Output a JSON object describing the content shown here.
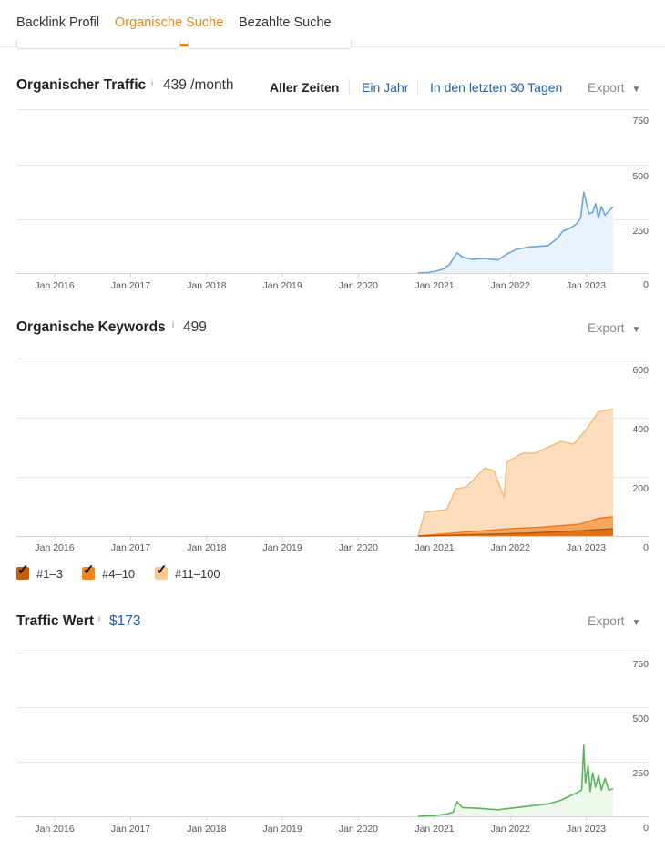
{
  "tabs": [
    {
      "label": "Backlink Profil",
      "active": false
    },
    {
      "label": "Organische Suche",
      "active": true
    },
    {
      "label": "Bezahlte Suche",
      "active": false
    }
  ],
  "traffic": {
    "title": "Organischer Traffic",
    "info": "i",
    "value": "439 /month",
    "ranges": [
      "Aller Zeiten",
      "Ein Jahr",
      "In den letzten 30 Tagen"
    ],
    "export": "Export"
  },
  "keywords": {
    "title": "Organische Keywords",
    "info": "i",
    "value": "499",
    "export": "Export",
    "legend": [
      {
        "label": "#1–3",
        "color": "#c55f0e",
        "checked": true
      },
      {
        "label": "#4–10",
        "color": "#f0861c",
        "checked": true
      },
      {
        "label": "#11–100",
        "color": "#fbc890",
        "checked": true
      }
    ]
  },
  "value": {
    "title": "Traffic Wert",
    "info": "i",
    "amount": "$173",
    "export": "Export"
  },
  "colors": {
    "accent": "#f18416",
    "link": "#1f5fa8",
    "traffic_line": "#6aa6dd",
    "traffic_fill": "#eaf3fc",
    "value_line": "#5bb55a",
    "value_fill": "#eef7ec"
  },
  "chart_data": [
    {
      "type": "area",
      "title": "Organischer Traffic",
      "x_ticks": [
        "Jan 2016",
        "Jan 2017",
        "Jan 2018",
        "Jan 2019",
        "Jan 2020",
        "Jan 2021",
        "Jan 2022",
        "Jan 2023"
      ],
      "y_ticks": [
        "750",
        "500",
        "250",
        "0"
      ],
      "ylim": [
        0,
        750
      ],
      "xlim": [
        "2015-07-01",
        "2023-06-01"
      ],
      "grid": true,
      "series": [
        {
          "x": [
            "2020-10-15",
            "2020-12-01",
            "2021-01-15",
            "2021-02-15",
            "2021-03-15",
            "2021-04-01",
            "2021-04-20",
            "2021-05-15",
            "2021-07-01",
            "2021-09-01",
            "2021-11-01",
            "2021-12-20",
            "2022-02-01",
            "2022-04-01",
            "2022-07-01",
            "2022-08-15",
            "2022-09-10",
            "2022-10-15",
            "2022-11-15",
            "2022-12-05",
            "2022-12-20",
            "2023-01-15",
            "2023-02-01",
            "2023-02-15",
            "2023-03-01",
            "2023-03-15",
            "2023-04-01",
            "2023-04-20",
            "2023-05-10"
          ],
          "y": [
            0,
            3,
            15,
            30,
            60,
            100,
            140,
            110,
            95,
            100,
            90,
            135,
            165,
            180,
            190,
            240,
            290,
            310,
            340,
            380,
            560,
            410,
            420,
            480,
            380,
            460,
            400,
            430,
            460
          ]
        }
      ]
    },
    {
      "type": "area",
      "title": "Organische Keywords",
      "x_ticks": [
        "Jan 2016",
        "Jan 2017",
        "Jan 2018",
        "Jan 2019",
        "Jan 2020",
        "Jan 2021",
        "Jan 2022",
        "Jan 2023"
      ],
      "y_ticks": [
        "600",
        "400",
        "200",
        "0"
      ],
      "ylim": [
        0,
        600
      ],
      "xlim": [
        "2015-07-01",
        "2023-06-01"
      ],
      "grid": true,
      "series": [
        {
          "name": "#1–3",
          "x": [
            "2020-10-15",
            "2021-03-01",
            "2021-07-01",
            "2022-01-01",
            "2022-06-01",
            "2022-12-01",
            "2023-05-10"
          ],
          "y": [
            0,
            2,
            5,
            8,
            12,
            18,
            25
          ]
        },
        {
          "name": "#4–10",
          "x": [
            "2020-10-15",
            "2021-03-01",
            "2021-07-01",
            "2022-01-01",
            "2022-06-01",
            "2022-12-01",
            "2023-03-01",
            "2023-05-10"
          ],
          "y": [
            0,
            8,
            15,
            25,
            30,
            40,
            60,
            65
          ]
        },
        {
          "name": "#11–100",
          "x": [
            "2020-10-15",
            "2020-11-15",
            "2021-03-01",
            "2021-04-15",
            "2021-06-01",
            "2021-09-01",
            "2021-10-15",
            "2021-12-01",
            "2021-12-15",
            "2022-03-01",
            "2022-05-01",
            "2022-07-01",
            "2022-09-01",
            "2022-11-01",
            "2023-01-01",
            "2023-03-01",
            "2023-05-10"
          ],
          "y": [
            0,
            80,
            90,
            160,
            165,
            230,
            220,
            130,
            250,
            280,
            280,
            300,
            320,
            310,
            360,
            420,
            430
          ]
        }
      ]
    },
    {
      "type": "area",
      "title": "Traffic Wert",
      "x_ticks": [
        "Jan 2016",
        "Jan 2017",
        "Jan 2018",
        "Jan 2019",
        "Jan 2020",
        "Jan 2021",
        "Jan 2022",
        "Jan 2023"
      ],
      "y_ticks": [
        "750",
        "500",
        "250",
        "0"
      ],
      "ylim": [
        0,
        750
      ],
      "xlim": [
        "2015-07-01",
        "2023-06-01"
      ],
      "grid": true,
      "series": [
        {
          "x": [
            "2020-10-15",
            "2021-01-01",
            "2021-03-01",
            "2021-04-01",
            "2021-04-20",
            "2021-05-15",
            "2021-08-01",
            "2021-11-01",
            "2022-01-01",
            "2022-04-01",
            "2022-07-01",
            "2022-09-01",
            "2022-10-15",
            "2022-11-15",
            "2022-12-10",
            "2022-12-20",
            "2022-12-28",
            "2023-01-10",
            "2023-01-20",
            "2023-02-01",
            "2023-02-15",
            "2023-03-01",
            "2023-03-15",
            "2023-04-01",
            "2023-04-20",
            "2023-05-10"
          ],
          "y": [
            0,
            5,
            15,
            30,
            100,
            60,
            55,
            45,
            55,
            70,
            85,
            110,
            140,
            160,
            180,
            490,
            230,
            350,
            170,
            300,
            200,
            280,
            180,
            260,
            180,
            190
          ]
        }
      ]
    }
  ]
}
